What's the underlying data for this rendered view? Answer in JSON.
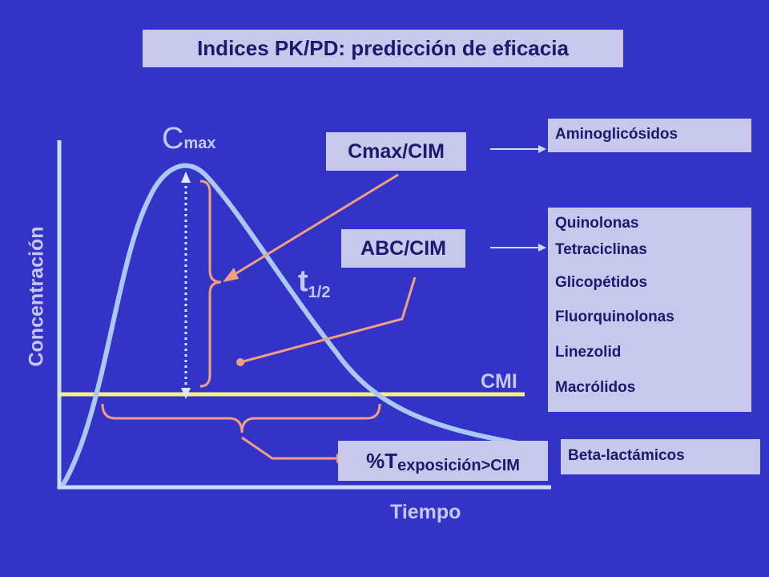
{
  "title": "Indices PK/PD: predicción de eficacia",
  "axes": {
    "y_label": "Concentración",
    "x_label": "Tiempo"
  },
  "curve_labels": {
    "cmax_main": "C",
    "cmax_sub": "max",
    "half_main": "t",
    "half_sub": "1/2",
    "cmi": "CMI"
  },
  "metrics": {
    "cmax_cim": "Cmax/CIM",
    "abc_cim": "ABC/CIM",
    "texp_prefix": "%T",
    "texp_sub": "exposición>CIM"
  },
  "drug_groups": {
    "group1": [
      "Aminoglicósidos"
    ],
    "group2": [
      "Quinolonas",
      "Tetraciclinas",
      "Glicopétidos",
      "Fluorquinolonas",
      "Linezolid",
      "Macrólidos"
    ],
    "group3": [
      "Beta-lactámicos"
    ]
  },
  "colors": {
    "background": "#3333c8",
    "box": "#c8c8ec",
    "curve": "#a9c8f4",
    "cmi_line": "#f4f08a",
    "annotation": "#f0a080",
    "axis": "#c8dcf8"
  }
}
